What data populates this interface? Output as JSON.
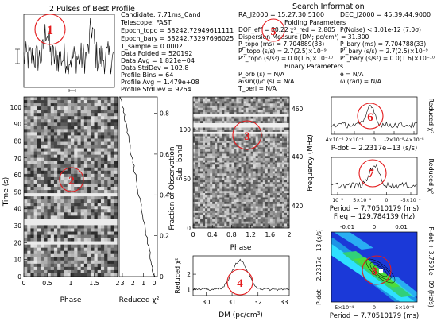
{
  "pulse_profile": {
    "title": "2 Pulses of Best Profile"
  },
  "candidate_info": [
    "Candidate:  7.71ms_Cand",
    "Telescope:  FAST",
    "Epoch_topo = 58242.72949611111",
    "Epoch_bary = 58242.73297696025",
    "T_sample    = 0.0002",
    "Data Folded   = 520192",
    "Data Avg      = 1.821e+04",
    "Data StdDev   = 102.8",
    "Profile Bins  = 64",
    "Profile Avg   = 1.479e+08",
    "Profile StdDev = 9264"
  ],
  "search_info": {
    "title": "Search Information",
    "ra": "RA_J2000 = 15:27:30.5100",
    "dec": "DEC_J2000 = 45:39:44.9000",
    "folding_title": "Folding Parameters",
    "dof": "DOF_eff = 30.22   χ²_red = 2.805",
    "pnoise": "P(Noise) < 1.01e-12  (7.0σ)",
    "dm": "Dispersion Measure (DM; pc/cm³) = 31.300",
    "p_topo": "P_topo (ms) = 7.704889(33)",
    "p_bary": "P_bary (ms) = 7.704788(33)",
    "pd_topo": "P'_topo (s/s) = 2.7(2.5)×10⁻⁹",
    "pd_bary": "P'_bary (s/s) = 2.7(2.5)×10⁻⁹",
    "pdd_topo": "P''_topo (s/s²) = 0.0(1.6)×10⁻¹⁰",
    "pdd_bary": "P''_bary (s/s²) = 0.0(1.6)×10⁻¹⁰",
    "binary_title": "Binary Parameters",
    "porb": "P_orb (s) = N/A",
    "e": "e = N/A",
    "a1": "a₁sin(i)/c (s) = N/A",
    "omega": "ω (rad) = N/A",
    "tperi": "T_peri = N/A"
  },
  "time_phase": {
    "ylabel": "Time (s)",
    "xlabel": "Phase",
    "xticks": [
      "0",
      "0.5",
      "1",
      "1.5",
      "2"
    ],
    "yticks": [
      "0",
      "10",
      "20",
      "30",
      "40",
      "50",
      "60",
      "70",
      "80",
      "90",
      "100"
    ],
    "right_label": "Fraction of Observation",
    "right_ticks": [
      "0",
      "0.2",
      "0.4",
      "0.6",
      "0.8"
    ]
  },
  "reduced_chi_time": {
    "xlabel": "Reduced χ²",
    "xticks": [
      "3",
      "2",
      "1",
      "0"
    ]
  },
  "subband": {
    "ylabel": "Sub−band",
    "yticks": [
      "0",
      "50",
      "100"
    ],
    "xlabel": "Phase",
    "xticks": [
      "0",
      "0.4",
      "0.8",
      "1.2",
      "1.6",
      "2"
    ],
    "right_label": "Frequency (MHz)",
    "right_ticks": [
      "420",
      "440",
      "460"
    ]
  },
  "dm_plot": {
    "ylabel": "Reduced χ²",
    "xlabel": "DM (pc/cm³)",
    "xticks": [
      "30",
      "31",
      "32",
      "33"
    ],
    "yticks": [
      "1",
      "2"
    ]
  },
  "pdot_plot": {
    "xlabel": "P-dot − 2.2317e−13 (s/s)",
    "xticks": [
      "4×10⁻⁸",
      "2×10⁻⁸",
      "0",
      "-2×10⁻⁸",
      "-4×10⁻⁸"
    ],
    "ylabel": "Reduced χ²"
  },
  "period_plot": {
    "xlabel": "Period − 7.70510179 (ms)",
    "xticks": [
      "10⁻³",
      "5×10⁻⁴",
      "0",
      "-5×10⁻⁴"
    ],
    "ylabel": "Reduced χ²"
  },
  "pp_plane": {
    "top_label": "Freq − 129.784139 (Hz)",
    "top_ticks": [
      "-0.01",
      "0",
      "0.01"
    ],
    "left_label": "P-dot − 2.2317e−13 (s/s)",
    "right_label": "F-dot + 3.7591e−09 (Hz/s)",
    "bottom_label": "Period − 7.70510179 (ms)",
    "bottom_ticks": [
      "-5×10⁻⁴",
      "0",
      "-5×10⁻⁴"
    ]
  },
  "markers": [
    "1",
    "2",
    "3",
    "4",
    "5",
    "6",
    "7",
    "8"
  ],
  "colors": {
    "marker": "#e41a1c",
    "plane_bg": "#1b39d8",
    "plane_band": "#2fe0ff",
    "plane_core": "#4ddc3a"
  }
}
